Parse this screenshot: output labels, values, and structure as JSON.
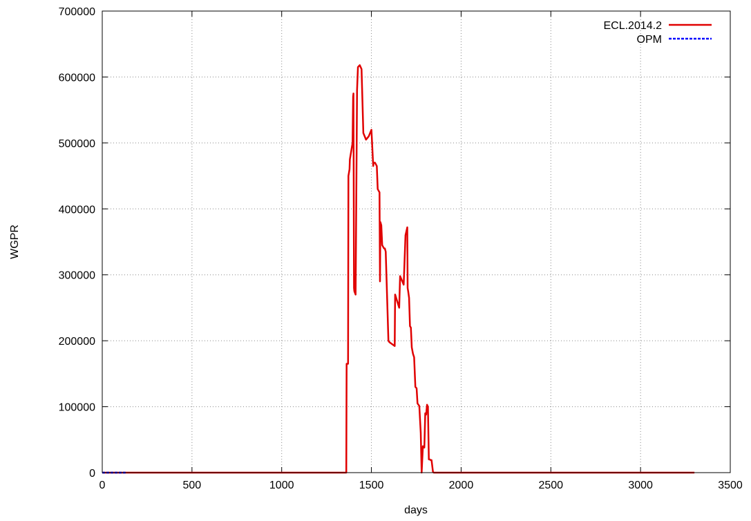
{
  "chart_data": {
    "type": "line",
    "title": "",
    "xlabel": "days",
    "ylabel": "WGPR",
    "xlim": [
      0,
      3500
    ],
    "ylim": [
      0,
      700000
    ],
    "xticks": [
      0,
      500,
      1000,
      1500,
      2000,
      2500,
      3000,
      3500
    ],
    "yticks": [
      0,
      100000,
      200000,
      300000,
      400000,
      500000,
      600000,
      700000
    ],
    "grid": true,
    "legend_position": "top-right",
    "series": [
      {
        "name": "ECL.2014.2",
        "color": "#e00000",
        "line_style": "solid",
        "x": [
          0,
          1360,
          1362,
          1370,
          1372,
          1378,
          1380,
          1395,
          1398,
          1400,
          1403,
          1405,
          1412,
          1418,
          1420,
          1425,
          1435,
          1445,
          1455,
          1470,
          1485,
          1500,
          1510,
          1512,
          1520,
          1530,
          1535,
          1545,
          1548,
          1550,
          1555,
          1560,
          1570,
          1575,
          1580,
          1595,
          1600,
          1630,
          1632,
          1655,
          1660,
          1680,
          1690,
          1700,
          1702,
          1705,
          1710,
          1715,
          1720,
          1725,
          1732,
          1738,
          1745,
          1752,
          1757,
          1762,
          1767,
          1775,
          1780,
          1787,
          1790,
          1795,
          1800,
          1805,
          1810,
          1815,
          1820,
          1823,
          1825,
          1830,
          1835,
          1843,
          1848,
          1855,
          1860,
          1862,
          1865,
          1870,
          3300
        ],
        "y": [
          0,
          0,
          165000,
          165000,
          450000,
          460000,
          475000,
          500000,
          570000,
          575000,
          280000,
          275000,
          270000,
          505000,
          580000,
          615000,
          618000,
          612000,
          515000,
          505000,
          510000,
          520000,
          465000,
          470000,
          470000,
          465000,
          430000,
          425000,
          290000,
          380000,
          375000,
          345000,
          340000,
          340000,
          335000,
          200000,
          198000,
          192000,
          270000,
          250000,
          298000,
          285000,
          360000,
          372000,
          280000,
          275000,
          265000,
          222000,
          220000,
          190000,
          180000,
          175000,
          130000,
          128000,
          105000,
          103000,
          101000,
          60000,
          0,
          40000,
          38000,
          38000,
          90000,
          88000,
          103000,
          100000,
          20000,
          20000,
          20000,
          19000,
          19000,
          1000,
          0,
          0,
          0,
          0,
          0,
          0,
          0
        ]
      },
      {
        "name": "OPM",
        "color": "#0000ff",
        "line_style": "dashed",
        "x": [
          0,
          130
        ],
        "y": [
          0,
          0
        ]
      }
    ]
  }
}
